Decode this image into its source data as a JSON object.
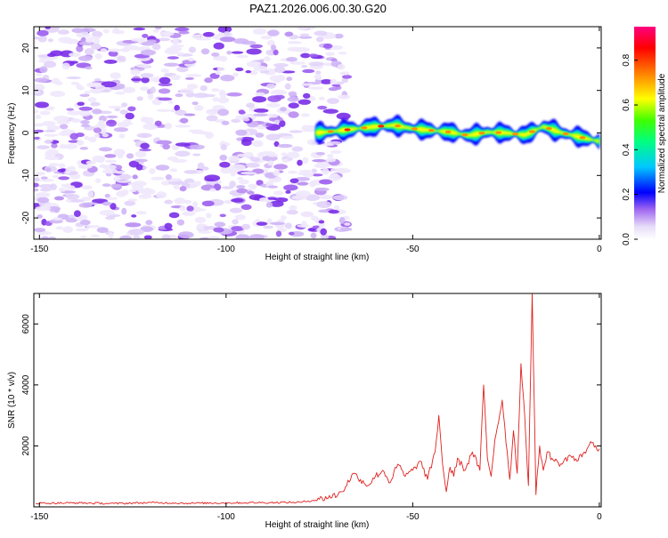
{
  "title": "PAZ1.2026.006.00.30.G20",
  "chart_data": [
    {
      "type": "heatmap",
      "xlabel": "Height of straight line (km)",
      "ylabel": "Frequency (Hz)",
      "xlim": [
        -151.5,
        0.5
      ],
      "ylim": [
        -25,
        25
      ],
      "xticks": [
        -150,
        -100,
        -50,
        0
      ],
      "yticks": [
        -20,
        -10,
        0,
        10,
        20
      ],
      "colorbar": {
        "label": "Normalized spectral amplitude",
        "range": [
          0,
          0.95
        ],
        "ticks": [
          0.0,
          0.2,
          0.4,
          0.6,
          0.8
        ],
        "tick_labels": [
          "0.0",
          "0.2",
          "0.4",
          "0.6",
          "0.8"
        ],
        "colors": [
          "#ffffff",
          "#d8c8f4",
          "#8e44ef",
          "#0000ff",
          "#00ffff",
          "#00ff00",
          "#ffff00",
          "#ff8000",
          "#ff0000",
          "#ff0080"
        ]
      },
      "signal_track": {
        "x": [
          -76,
          -70,
          -65,
          -60,
          -55,
          -50,
          -45,
          -40,
          -35,
          -30,
          -25,
          -20,
          -15,
          -10,
          -5,
          0
        ],
        "y": [
          0,
          0.5,
          1,
          1.5,
          1.8,
          1,
          0.6,
          0.2,
          -0.6,
          0.2,
          0,
          -0.5,
          1.5,
          0,
          -1,
          -2
        ]
      }
    },
    {
      "type": "line",
      "xlabel": "Height of straight line (km)",
      "ylabel": "SNR (10 * v/v)",
      "xlim": [
        -151.5,
        0.5
      ],
      "ylim": [
        0,
        7000
      ],
      "xticks": [
        -150,
        -100,
        -50,
        0
      ],
      "yticks": [
        2000,
        4000,
        6000
      ],
      "series": [
        {
          "color": "#e0201e",
          "x": [
            -151,
            -140,
            -130,
            -120,
            -110,
            -100,
            -90,
            -80,
            -75,
            -70,
            -68,
            -66,
            -64,
            -62,
            -60,
            -58,
            -56,
            -54,
            -52,
            -50,
            -48,
            -46,
            -44,
            -43,
            -42,
            -41,
            -40,
            -39,
            -38,
            -36,
            -34,
            -32,
            -31,
            -30,
            -29,
            -28,
            -26,
            -24,
            -23,
            -22,
            -21,
            -20,
            -19,
            -18,
            -17,
            -16,
            -15,
            -14,
            -12,
            -10,
            -8,
            -6,
            -4,
            -2,
            0
          ],
          "y": [
            120,
            130,
            110,
            140,
            120,
            130,
            140,
            150,
            250,
            400,
            650,
            1100,
            900,
            700,
            1000,
            1200,
            800,
            1400,
            1000,
            1200,
            1500,
            900,
            1800,
            3000,
            1400,
            500,
            1300,
            1000,
            1600,
            1200,
            1800,
            1200,
            4000,
            1600,
            1000,
            2200,
            3500,
            900,
            2500,
            1100,
            4700,
            3000,
            700,
            7000,
            400,
            2000,
            1200,
            1800,
            1500,
            1400,
            1700,
            1500,
            1800,
            2100,
            1900
          ]
        }
      ]
    }
  ]
}
